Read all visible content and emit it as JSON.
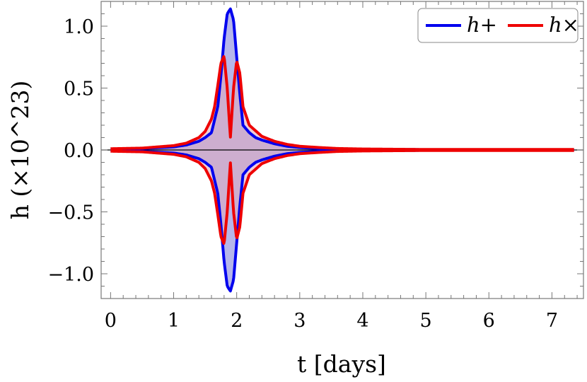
{
  "chart_data": {
    "type": "line",
    "xlabel": "t [days]",
    "ylabel": "h (×10^23)",
    "xlim": [
      -0.15,
      7.5
    ],
    "ylim": [
      -1.2,
      1.2
    ],
    "x_ticks": [
      0,
      1,
      2,
      3,
      4,
      5,
      6,
      7
    ],
    "x_tick_labels": [
      "0",
      "1",
      "2",
      "3",
      "4",
      "5",
      "6",
      "7"
    ],
    "y_ticks": [
      -1.0,
      -0.5,
      0.0,
      0.5,
      1.0
    ],
    "y_tick_labels": [
      "−1.0",
      "−0.5",
      "0.0",
      "0.5",
      "1.0"
    ],
    "grid": false,
    "legend_position": "top-right",
    "series": [
      {
        "name": "h+",
        "color": "#0000ee",
        "fill": "#7a7ad8",
        "oscillating": true,
        "envelope_x": [
          0,
          0.5,
          1.0,
          1.2,
          1.4,
          1.5,
          1.6,
          1.7,
          1.75,
          1.8,
          1.85,
          1.9,
          1.95,
          2.0,
          2.05,
          2.1,
          2.2,
          2.3,
          2.4,
          2.6,
          2.8,
          3.0,
          3.3,
          3.6,
          4.0,
          5.0,
          6.0,
          7.35
        ],
        "envelope_y": [
          0.008,
          0.012,
          0.025,
          0.04,
          0.07,
          0.1,
          0.14,
          0.35,
          0.6,
          0.9,
          1.1,
          1.14,
          1.05,
          0.75,
          0.45,
          0.2,
          0.14,
          0.1,
          0.08,
          0.05,
          0.03,
          0.02,
          0.012,
          0.008,
          0.005,
          0.003,
          0.003,
          0.003
        ]
      },
      {
        "name": "h×",
        "color": "#ee0000",
        "fill": "#e0a8b8",
        "oscillating": true,
        "envelope_x": [
          0,
          0.5,
          1.0,
          1.2,
          1.4,
          1.5,
          1.6,
          1.65,
          1.7,
          1.75,
          1.8,
          1.85,
          1.9,
          1.95,
          2.0,
          2.05,
          2.1,
          2.2,
          2.4,
          2.6,
          2.8,
          3.0,
          3.3,
          3.6,
          4.0,
          5.0,
          6.0,
          7.35
        ],
        "envelope_y": [
          0.01,
          0.015,
          0.035,
          0.055,
          0.1,
          0.15,
          0.25,
          0.35,
          0.52,
          0.7,
          0.76,
          0.5,
          0.1,
          0.5,
          0.72,
          0.62,
          0.35,
          0.2,
          0.11,
          0.07,
          0.045,
          0.03,
          0.02,
          0.012,
          0.008,
          0.004,
          0.004,
          0.004
        ]
      }
    ]
  }
}
